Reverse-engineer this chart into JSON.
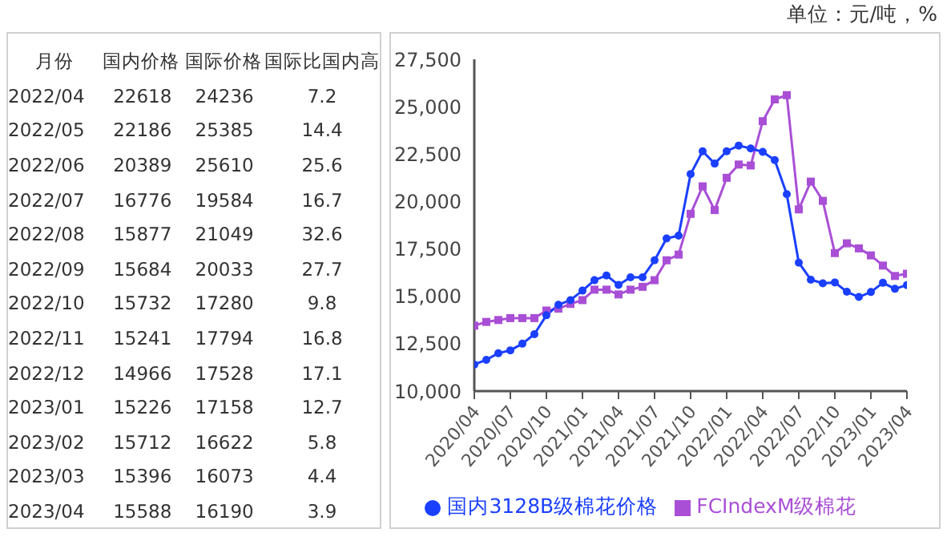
{
  "chart_data": [
    {
      "type": "other",
      "xlabel": "月份",
      "data_labels": true,
      "categories": [
        "2022/04",
        "2022/05",
        "2022/06",
        "2022/07",
        "2022/08",
        "2022/09",
        "2022/10",
        "2022/11",
        "2022/12",
        "2023/01",
        "2023/02",
        "2023/03",
        "2023/04"
      ],
      "series": [
        {
          "name": "国内价格",
          "values": [
            22618,
            22186,
            20389,
            16776,
            15877,
            15684,
            15732,
            15241,
            14966,
            15226,
            15712,
            15396,
            15588
          ]
        },
        {
          "name": "国际价格",
          "values": [
            24236,
            25385,
            25610,
            19584,
            21049,
            20033,
            17280,
            17794,
            17528,
            17158,
            16622,
            16073,
            16190
          ]
        },
        {
          "name": "国际比国内高",
          "values": [
            7.2,
            14.4,
            25.6,
            16.7,
            32.6,
            27.7,
            9.8,
            16.8,
            17.1,
            12.7,
            5.8,
            4.4,
            3.9
          ]
        }
      ]
    },
    {
      "type": "line",
      "annotations": [
        "单位：元/吨，%"
      ],
      "categories": [
        "2020/04",
        null,
        null,
        "2020/07",
        null,
        null,
        "2020/10",
        null,
        null,
        "2021/01",
        null,
        null,
        "2021/04",
        null,
        null,
        "2021/07",
        null,
        null,
        "2021/10",
        null,
        null,
        "2022/01",
        null,
        null,
        "2022/04",
        null,
        null,
        "2022/07",
        null,
        null,
        "2022/10",
        null,
        null,
        "2023/01",
        null,
        null,
        "2023/04"
      ],
      "ylim": [
        10000,
        27500
      ],
      "yticks": [
        {
          "value": 10000,
          "label": "10,000"
        },
        {
          "value": 12500,
          "label": "12,500"
        },
        {
          "value": 15000,
          "label": "15,000"
        },
        {
          "value": 17500,
          "label": "17,500"
        },
        {
          "value": 20000,
          "label": "20,000"
        },
        {
          "value": 22500,
          "label": "22,500"
        },
        {
          "value": 25000,
          "label": "25,000"
        },
        {
          "value": 27500,
          "label": "27,500"
        }
      ],
      "grid": false,
      "legend": "bottom",
      "line_style": "solid",
      "series": [
        {
          "name": "国内3128B级棉花价格",
          "color": "#1a3fff",
          "marker": "circle",
          "values": [
            11400,
            11650,
            12000,
            12150,
            12500,
            13000,
            14000,
            14550,
            14800,
            15300,
            15850,
            16100,
            15600,
            16000,
            16000,
            16900,
            18050,
            18200,
            21450,
            22650,
            22000,
            22650,
            22950,
            22800,
            22618,
            22186,
            20389,
            16776,
            15877,
            15684,
            15732,
            15241,
            14966,
            15226,
            15712,
            15396,
            15588
          ]
        },
        {
          "name": "FCIndexM级棉花",
          "color": "#a94fd6",
          "marker": "square",
          "values": [
            13450,
            13650,
            13750,
            13850,
            13850,
            13850,
            14250,
            14350,
            14600,
            14800,
            15350,
            15350,
            15100,
            15350,
            15500,
            15850,
            16900,
            17200,
            19350,
            20800,
            19550,
            21250,
            21950,
            21900,
            24236,
            25385,
            25610,
            19584,
            21049,
            20033,
            17280,
            17794,
            17528,
            17158,
            16622,
            16073,
            16190
          ]
        }
      ]
    }
  ]
}
